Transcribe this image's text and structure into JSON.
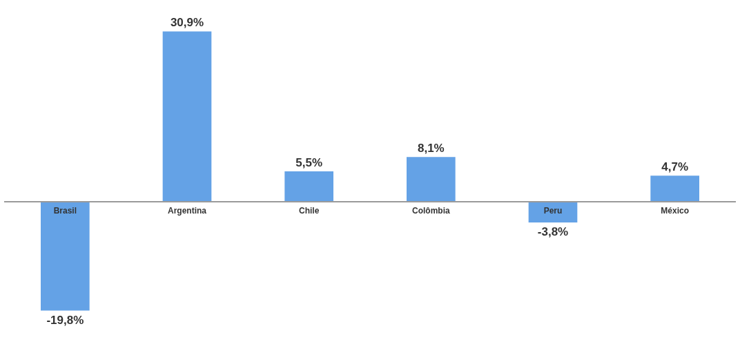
{
  "chart_data": {
    "type": "bar",
    "categories": [
      "Brasil",
      "Argentina",
      "Chile",
      "Colômbia",
      "Peru",
      "México"
    ],
    "values": [
      -19.8,
      30.9,
      5.5,
      8.1,
      -3.8,
      4.7
    ],
    "value_labels": [
      "-19,8%",
      "30,9%",
      "5,5%",
      "8,1%",
      "-3,8%",
      "4,7%"
    ],
    "color": "#64a2e6"
  }
}
